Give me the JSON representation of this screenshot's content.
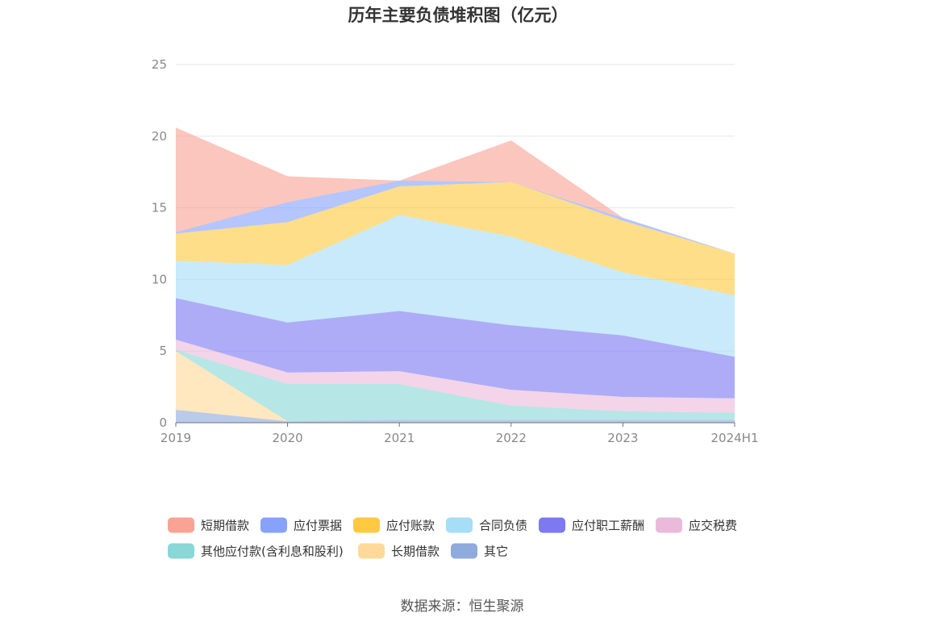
{
  "chart_data": {
    "type": "area",
    "stacked": true,
    "title": "历年主要负债堆积图（亿元）",
    "categories": [
      "2019",
      "2020",
      "2021",
      "2022",
      "2023",
      "2024H1"
    ],
    "ylim": [
      0,
      25
    ],
    "yticks": [
      "0",
      "5",
      "10",
      "15",
      "20",
      "25"
    ],
    "grid": true,
    "legend_position": "bottom",
    "series": [
      {
        "name": "其它",
        "color": "#8faadc",
        "values": [
          0.9,
          0.1,
          0.2,
          0.2,
          0.2,
          0.2
        ]
      },
      {
        "name": "长期借款",
        "color": "#ffd99a",
        "values": [
          4.1,
          0.0,
          0.0,
          0.0,
          0.0,
          0.0
        ]
      },
      {
        "name": "其他应付款(含利息和股利)",
        "color": "#8ad7d7",
        "values": [
          0.1,
          2.6,
          2.5,
          1.0,
          0.6,
          0.5
        ]
      },
      {
        "name": "应交税费",
        "color": "#ebbadb",
        "values": [
          0.7,
          0.8,
          0.9,
          1.1,
          1.0,
          1.0
        ]
      },
      {
        "name": "应付职工薪酬",
        "color": "#7d79f0",
        "values": [
          2.9,
          3.5,
          4.2,
          4.5,
          4.3,
          2.9
        ]
      },
      {
        "name": "合同负债",
        "color": "#a6ddf7",
        "values": [
          2.6,
          4.0,
          6.7,
          6.2,
          4.4,
          4.3
        ]
      },
      {
        "name": "应付账款",
        "color": "#ffc940",
        "values": [
          1.9,
          3.0,
          2.0,
          3.8,
          3.6,
          2.9
        ]
      },
      {
        "name": "应付票据",
        "color": "#87a2fb",
        "values": [
          0.1,
          1.4,
          0.4,
          0.0,
          0.2,
          0.0
        ]
      },
      {
        "name": "短期借款",
        "color": "#f9a394",
        "values": [
          7.3,
          1.8,
          0.0,
          2.9,
          0.0,
          0.0
        ]
      }
    ],
    "legend_order": [
      "短期借款",
      "应付票据",
      "应付账款",
      "合同负债",
      "应付职工薪酬",
      "应交税费",
      "其他应付款(含利息和股利)",
      "长期借款",
      "其它"
    ]
  },
  "source": "数据来源：恒生聚源"
}
